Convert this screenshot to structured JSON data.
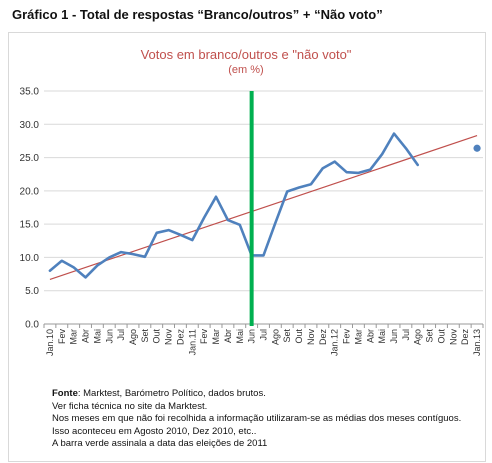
{
  "figure": {
    "label": "Gráfico 1 - Total de respostas “Branco/outros” + “Não voto”"
  },
  "chart_data": {
    "type": "line",
    "title": "Votos em branco/outros e \"não voto\"",
    "subtitle": "(em %)",
    "ylim": [
      0,
      35
    ],
    "yticks": [
      "0.0",
      "5.0",
      "10.0",
      "15.0",
      "20.0",
      "25.0",
      "30.0",
      "35.0"
    ],
    "categories": [
      "Jan.10",
      "Fev",
      "Mar",
      "Abr",
      "Mai",
      "Jun",
      "Jul",
      "Ago",
      "Set",
      "Out",
      "Nov",
      "Dez",
      "Jan.11",
      "Fev",
      "Mar",
      "Abr",
      "Mai",
      "Jun",
      "Jul",
      "Ago",
      "Set",
      "Out",
      "Nov",
      "Dez",
      "Jan.12",
      "Fev",
      "Mar",
      "Abr",
      "Mai",
      "Jun",
      "Jul",
      "Ago",
      "Set",
      "Out",
      "Nov",
      "Dez",
      "Jan.13"
    ],
    "series": [
      {
        "color": "#4f81bd",
        "values": [
          8.0,
          9.5,
          8.5,
          7.0,
          8.8,
          10.0,
          10.8,
          10.5,
          10.1,
          13.7,
          14.1,
          13.4,
          12.6,
          16.0,
          19.1,
          15.6,
          14.9,
          10.3,
          10.3,
          15.2,
          19.9,
          20.5,
          21.0,
          23.4,
          24.4,
          22.8,
          22.7,
          23.2,
          25.5,
          28.6,
          26.4,
          23.9,
          null,
          null,
          null,
          null,
          null
        ]
      },
      {
        "kind": "point",
        "color": "#4f81bd",
        "category_index": 36,
        "value": 26.4
      }
    ],
    "trendline": {
      "color": "#c0504d",
      "start": {
        "category_index": 0,
        "value": 6.7
      },
      "end": {
        "category_index": 36,
        "value": 28.3
      }
    },
    "marker_line": {
      "color": "#00b050",
      "category_index": 17,
      "meaning": "A barra verde assinala a data das eleições de 2011"
    },
    "grid": true
  },
  "notes": {
    "source_label": "Fonte",
    "source_text": ": Marktest, Barómetro Político, dados brutos.",
    "lines": [
      "Ver ficha técnica no site da Marktest.",
      "Nos meses em que não foi recolhida a informação utilizaram-se as médias dos meses contíguos.",
      "Isso aconteceu em Agosto 2010, Dez 2010, etc..",
      "A barra verde assinala a data das eleições de 2011"
    ]
  }
}
